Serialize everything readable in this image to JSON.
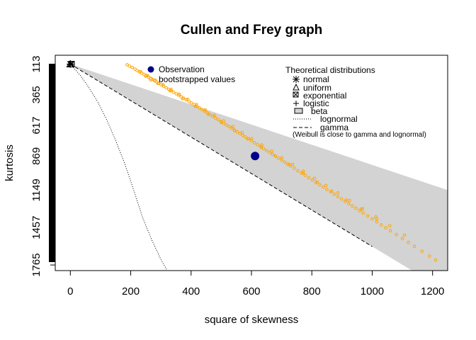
{
  "chart_data": {
    "type": "scatter",
    "title": "Cullen and Frey graph",
    "xlabel": "square of skewness",
    "ylabel": "kurtosis",
    "xlim": [
      -50,
      1250
    ],
    "ylim": [
      1811,
      40
    ],
    "xticks": [
      0,
      200,
      400,
      600,
      800,
      1000,
      1200
    ],
    "yticks": [
      113,
      365,
      617,
      869,
      1149,
      1457,
      1765
    ],
    "observation": {
      "x": 612,
      "y": 869
    },
    "bootstrap": {
      "x": [
        188,
        196,
        205,
        214,
        221,
        229,
        236,
        244,
        251,
        259,
        266,
        272,
        279,
        286,
        293,
        301,
        309,
        318,
        326,
        334,
        342,
        351,
        359,
        367,
        375,
        384,
        393,
        401,
        410,
        418,
        427,
        436,
        445,
        454,
        463,
        472,
        481,
        490,
        499,
        508,
        517,
        526,
        535,
        544,
        553,
        562,
        571,
        580,
        590,
        600,
        610,
        620,
        630,
        640,
        650,
        660,
        670,
        680,
        690,
        700,
        710,
        720,
        730,
        742,
        754,
        766,
        778,
        790,
        802,
        814,
        826,
        838,
        850,
        862,
        874,
        886,
        898,
        910,
        922,
        934,
        946,
        958,
        970,
        985,
        1000,
        1015,
        1030,
        1045,
        1060,
        1080,
        1100,
        1120,
        1140,
        1165,
        1190,
        1210,
        232,
        256,
        281,
        307,
        334,
        361,
        389,
        418,
        447,
        477,
        507,
        538,
        569,
        601,
        634,
        667,
        701,
        736,
        772,
        809,
        847,
        886,
        925,
        968,
        1012,
        1058,
        1107,
        250,
        290,
        330,
        372,
        414,
        457,
        500,
        544,
        588,
        633,
        679,
        725,
        771,
        818,
        866,
        914,
        963,
        1015
      ],
      "y": [
        118,
        129,
        141,
        154,
        165,
        176,
        186,
        197,
        208,
        220,
        230,
        239,
        250,
        260,
        271,
        283,
        295,
        308,
        320,
        332,
        344,
        357,
        369,
        381,
        393,
        406,
        420,
        432,
        446,
        458,
        472,
        486,
        500,
        514,
        528,
        542,
        556,
        570,
        585,
        599,
        613,
        627,
        641,
        656,
        670,
        684,
        698,
        712,
        728,
        744,
        760,
        775,
        791,
        807,
        823,
        839,
        855,
        871,
        887,
        903,
        919,
        935,
        951,
        970,
        990,
        1009,
        1028,
        1047,
        1066,
        1086,
        1105,
        1124,
        1144,
        1163,
        1183,
        1202,
        1221,
        1241,
        1260,
        1279,
        1298,
        1318,
        1337,
        1362,
        1386,
        1410,
        1435,
        1459,
        1483,
        1515,
        1547,
        1580,
        1612,
        1652,
        1692,
        1725,
        174,
        208,
        245,
        281,
        321,
        360,
        402,
        445,
        489,
        534,
        580,
        628,
        676,
        726,
        777,
        829,
        883,
        938,
        994,
        1052,
        1111,
        1172,
        1234,
        1301,
        1370,
        1442,
        1519,
        212,
        272,
        332,
        397,
        460,
        526,
        592,
        660,
        728,
        797,
        868,
        939,
        1010,
        1083,
        1157,
        1231,
        1306,
        1385
      ]
    },
    "theoretical": {
      "normal": {
        "x": 0,
        "y": 113
      },
      "uniform": {
        "x": 0,
        "y": 113
      },
      "exponential": {
        "x": 4,
        "y": 113
      },
      "logistic": {
        "x": 0,
        "y": 113
      },
      "lognormal": {
        "x": [
          0,
          30,
          60,
          90,
          120,
          150,
          180,
          210,
          240,
          270,
          300,
          321
        ],
        "y": [
          113,
          196,
          300,
          420,
          568,
          740,
          930,
          1150,
          1380,
          1560,
          1720,
          1811
        ]
      },
      "gamma": {
        "x": [
          0,
          200,
          400,
          600,
          800,
          1000,
          1200,
          1230
        ],
        "y": [
          113,
          413,
          713,
          1013,
          1313,
          1613,
          1913,
          1958
        ]
      },
      "beta_region": {
        "x_top": [
          0,
          1250
        ],
        "y_top": [
          113,
          1149
        ],
        "x_bottom": [
          0,
          1250
        ],
        "y_bottom": [
          113,
          1988
        ]
      }
    },
    "colors": {
      "observation": "#00008B",
      "bootstrap": "#FFA500",
      "beta_region": "#D3D3D3",
      "lines": "#000000"
    },
    "legend_left": {
      "items": [
        {
          "label": "Observation",
          "symbol": "filled-circle",
          "color": "#00008B"
        },
        {
          "label": "bootstrapped values",
          "symbol": "open-circle",
          "color": "#FFA500"
        }
      ],
      "position": "top"
    },
    "legend_right": {
      "title": "Theoretical distributions",
      "items": [
        {
          "label": "normal",
          "symbol": "asterisk-icon"
        },
        {
          "label": "uniform",
          "symbol": "triangle-icon"
        },
        {
          "label": "exponential",
          "symbol": "boxed-x-icon"
        },
        {
          "label": "logistic",
          "symbol": "plus-icon"
        },
        {
          "label": "beta",
          "symbol": "gray-box-icon"
        },
        {
          "label": "lognormal",
          "symbol": "dotted-line"
        },
        {
          "label": "gamma",
          "symbol": "dashed-line"
        }
      ],
      "note": "(Weibull is close to gamma and lognormal)",
      "position": "top-right"
    },
    "grid": false
  }
}
